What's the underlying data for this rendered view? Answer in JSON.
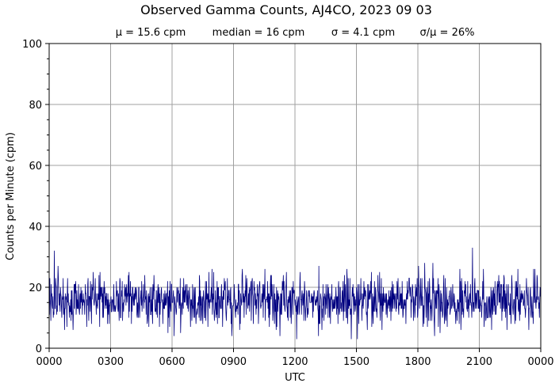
{
  "chart_data": {
    "type": "line",
    "title": "Observed Gamma Counts, AJ4CO, 2023 09 03",
    "stats": {
      "mean": "μ = 15.6 cpm",
      "median": "median = 16 cpm",
      "sigma": "σ = 4.1 cpm",
      "ratio": "σ/μ = 26%"
    },
    "xlabel": "UTC",
    "ylabel": "Counts per Minute (cpm)",
    "xlim_hours": [
      0,
      24
    ],
    "ylim": [
      0,
      100
    ],
    "x_ticks": [
      "0000",
      "0300",
      "0600",
      "0900",
      "1200",
      "1500",
      "1800",
      "2100",
      "0000"
    ],
    "y_ticks": [
      "0",
      "20",
      "40",
      "60",
      "80",
      "100"
    ],
    "grid": true,
    "line_color": "#000080",
    "sampling": "one reading per minute, 1440 readings",
    "summary": {
      "mean": 15.6,
      "median": 16,
      "std": 4.1,
      "min": 3,
      "max": 33
    },
    "notable_points": [
      {
        "time": "0015",
        "cpm": 32
      },
      {
        "time": "0110",
        "cpm": 6
      },
      {
        "time": "0855",
        "cpm": 4
      },
      {
        "time": "1205",
        "cpm": 3
      },
      {
        "time": "1445",
        "cpm": 3
      },
      {
        "time": "1310",
        "cpm": 27
      },
      {
        "time": "2040",
        "cpm": 33
      }
    ]
  }
}
